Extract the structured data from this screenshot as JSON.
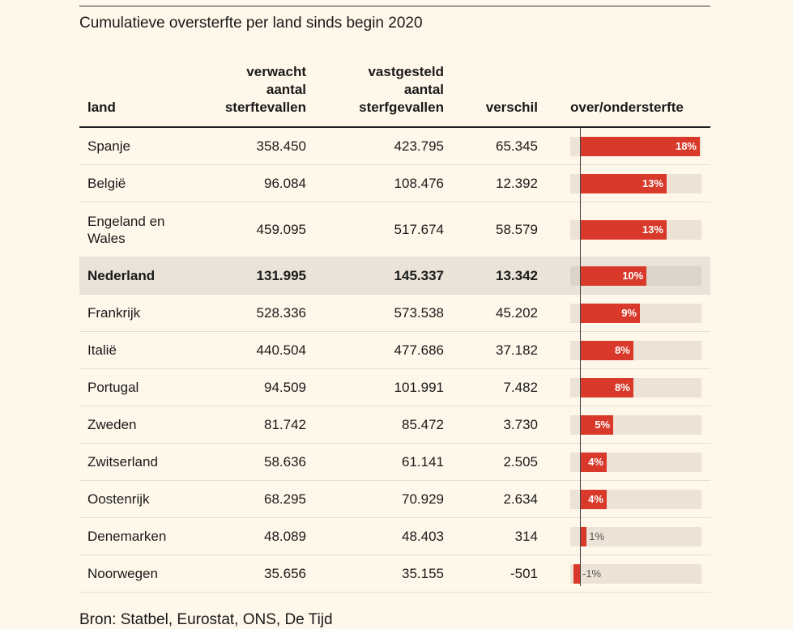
{
  "title": "Cumulatieve oversterfte per land sinds begin 2020",
  "headers": {
    "land": "land",
    "expected": [
      "verwacht",
      "aantal",
      "sterftevallen"
    ],
    "observed": [
      "vastgesteld",
      "aantal",
      "sterfgevallen"
    ],
    "diff": "verschil",
    "pct": "over/ondersterfte"
  },
  "source": "Bron: Statbel, Eurostat, ONS, De Tijd",
  "colors": {
    "bar": "#d8392a",
    "track": "#ece3d6",
    "highlight_row": "#ebe3d8",
    "background": "#fff7ea"
  },
  "chart_data": {
    "type": "table",
    "title": "Cumulatieve oversterfte per land sinds begin 2020",
    "columns": [
      "land",
      "verwacht aantal sterftevallen",
      "vastgesteld aantal sterfgevallen",
      "verschil",
      "over/ondersterfte"
    ],
    "bar_max": 18,
    "highlight": "Nederland",
    "rows": [
      {
        "land": "Spanje",
        "expected": "358.450",
        "observed": "423.795",
        "diff": "65.345",
        "pct": 18,
        "pct_label": "18%"
      },
      {
        "land": "België",
        "expected": "96.084",
        "observed": "108.476",
        "diff": "12.392",
        "pct": 13,
        "pct_label": "13%"
      },
      {
        "land": "Engeland en Wales",
        "land_lines": [
          "Engeland en",
          "Wales"
        ],
        "expected": "459.095",
        "observed": "517.674",
        "diff": "58.579",
        "pct": 13,
        "pct_label": "13%"
      },
      {
        "land": "Nederland",
        "expected": "131.995",
        "observed": "145.337",
        "diff": "13.342",
        "pct": 10,
        "pct_label": "10%"
      },
      {
        "land": "Frankrijk",
        "expected": "528.336",
        "observed": "573.538",
        "diff": "45.202",
        "pct": 9,
        "pct_label": "9%"
      },
      {
        "land": "Italië",
        "expected": "440.504",
        "observed": "477.686",
        "diff": "37.182",
        "pct": 8,
        "pct_label": "8%"
      },
      {
        "land": "Portugal",
        "expected": "94.509",
        "observed": "101.991",
        "diff": "7.482",
        "pct": 8,
        "pct_label": "8%"
      },
      {
        "land": "Zweden",
        "expected": "81.742",
        "observed": "85.472",
        "diff": "3.730",
        "pct": 5,
        "pct_label": "5%"
      },
      {
        "land": "Zwitserland",
        "expected": "58.636",
        "observed": "61.141",
        "diff": "2.505",
        "pct": 4,
        "pct_label": "4%"
      },
      {
        "land": "Oostenrijk",
        "expected": "68.295",
        "observed": "70.929",
        "diff": "2.634",
        "pct": 4,
        "pct_label": "4%"
      },
      {
        "land": "Denemarken",
        "expected": "48.089",
        "observed": "48.403",
        "diff": "314",
        "pct": 1,
        "pct_label": "1%"
      },
      {
        "land": "Noorwegen",
        "expected": "35.656",
        "observed": "35.155",
        "diff": "-501",
        "pct": -1,
        "pct_label": "-1%"
      }
    ]
  }
}
